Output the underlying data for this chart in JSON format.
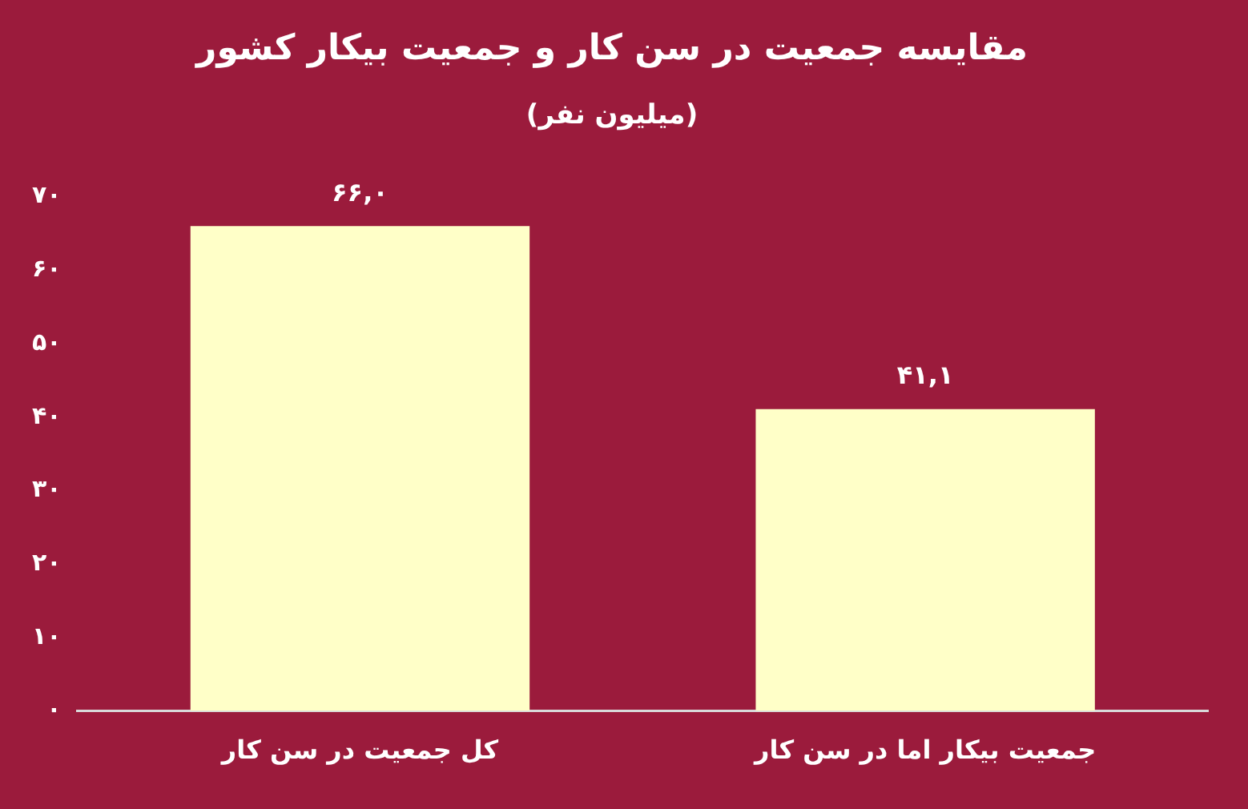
{
  "chart_data": {
    "type": "bar",
    "title": "مقایسه جمعیت در سن کار و جمعیت بیکار کشور",
    "subtitle": "(میلیون نفر)",
    "categories": [
      "کل جمعیت در سن کار",
      "جمعیت بیکار اما در سن کار"
    ],
    "values": [
      66.0,
      41.1
    ],
    "color": "#ffffc8",
    "value_labels": [
      "۶۶,۰",
      "۴۱,۱"
    ],
    "ylim": [
      0,
      70
    ],
    "yticks": [
      {
        "value": 0,
        "label": "۰"
      },
      {
        "value": 10,
        "label": "۱۰"
      },
      {
        "value": 20,
        "label": "۲۰"
      },
      {
        "value": 30,
        "label": "۳۰"
      },
      {
        "value": 40,
        "label": "۴۰"
      },
      {
        "value": 50,
        "label": "۵۰"
      },
      {
        "value": 60,
        "label": "۶۰"
      },
      {
        "value": 70,
        "label": "۷۰"
      }
    ],
    "grid": false,
    "legend": false
  }
}
